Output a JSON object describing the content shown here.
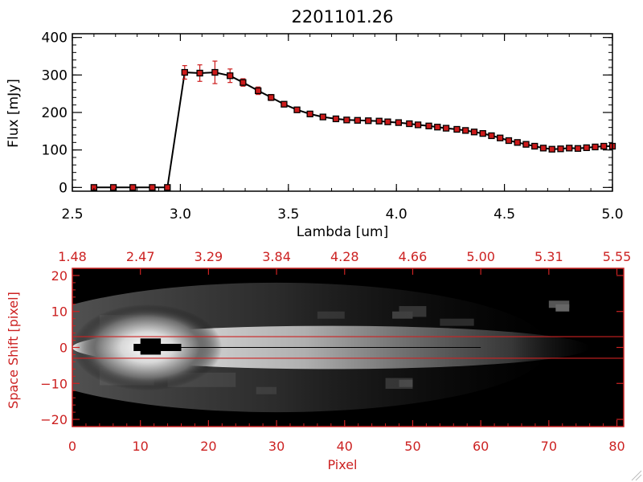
{
  "colors": {
    "axis_black": "#000000",
    "axis_red": "#cc2222",
    "marker_red": "#cc1a1a",
    "background": "#ffffff",
    "image_background": "#000000"
  },
  "chart_data": [
    {
      "type": "line",
      "title": "2201101.26",
      "xlabel": "Lambda [um]",
      "ylabel": "Flux [mJy]",
      "xlim": [
        2.5,
        5.0
      ],
      "ylim": [
        -10,
        410
      ],
      "xticks": [
        2.5,
        3.0,
        3.5,
        4.0,
        4.5,
        5.0
      ],
      "xtick_labels": [
        "2.5",
        "3.0",
        "3.5",
        "4.0",
        "4.5",
        "5.0"
      ],
      "yticks": [
        0,
        100,
        200,
        300,
        400
      ],
      "ytick_labels": [
        "0",
        "100",
        "200",
        "300",
        "400"
      ],
      "grid": false,
      "series": [
        {
          "x": [
            2.6,
            2.69,
            2.78,
            2.87,
            2.94,
            3.02,
            3.09,
            3.16,
            3.23,
            3.29,
            3.36,
            3.42,
            3.48,
            3.54,
            3.6,
            3.66,
            3.72,
            3.77,
            3.82,
            3.87,
            3.92,
            3.96,
            4.01,
            4.06,
            4.1,
            4.15,
            4.19,
            4.23,
            4.28,
            4.32,
            4.36,
            4.4,
            4.44,
            4.48,
            4.52,
            4.56,
            4.6,
            4.64,
            4.68,
            4.72,
            4.76,
            4.8,
            4.84,
            4.88,
            4.92,
            4.96,
            5.0
          ],
          "y": [
            0,
            0,
            0,
            0,
            0,
            307,
            305,
            307,
            298,
            280,
            258,
            240,
            222,
            207,
            196,
            188,
            183,
            180,
            179,
            178,
            177,
            175,
            173,
            170,
            167,
            164,
            161,
            158,
            155,
            152,
            148,
            144,
            138,
            132,
            125,
            120,
            115,
            110,
            105,
            102,
            103,
            105,
            104,
            106,
            108,
            110,
            110
          ],
          "yerr": [
            0,
            0,
            0,
            0,
            0,
            18,
            22,
            30,
            18,
            10,
            10,
            8,
            6,
            5,
            4,
            4,
            3,
            3,
            3,
            3,
            3,
            3,
            3,
            3,
            3,
            3,
            3,
            3,
            3,
            3,
            3,
            3,
            3,
            3,
            3,
            3,
            3,
            3,
            3,
            3,
            3,
            3,
            3,
            3,
            3,
            3,
            3
          ]
        }
      ]
    },
    {
      "type": "heatmap",
      "xlabel": "Pixel",
      "ylabel": "Space Shift [pixel]",
      "xlim": [
        0,
        81
      ],
      "ylim": [
        -22,
        22
      ],
      "xticks": [
        0,
        10,
        20,
        30,
        40,
        50,
        60,
        70,
        80
      ],
      "xtick_labels": [
        "0",
        "10",
        "20",
        "30",
        "40",
        "50",
        "60",
        "70",
        "80"
      ],
      "yticks": [
        -20,
        -10,
        0,
        10,
        20
      ],
      "ytick_labels": [
        "−20",
        "−10",
        "0",
        "10",
        "20"
      ],
      "top_axis_positions": [
        0,
        10,
        20,
        30,
        40,
        50,
        60,
        70,
        80
      ],
      "top_axis_labels": [
        "1.48",
        "2.47",
        "3.29",
        "3.84",
        "4.28",
        "4.66",
        "5.00",
        "5.31",
        "5.55"
      ],
      "aperture_lines": [
        3,
        -3
      ],
      "trace_center": 0,
      "saturated_peak_pixel": 11
    }
  ]
}
